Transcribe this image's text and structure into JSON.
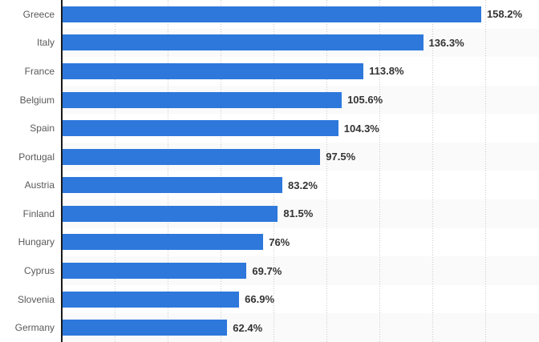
{
  "chart_data": {
    "type": "bar",
    "orientation": "horizontal",
    "categories": [
      "Greece",
      "Italy",
      "France",
      "Belgium",
      "Spain",
      "Portugal",
      "Austria",
      "Finland",
      "Hungary",
      "Cyprus",
      "Slovenia",
      "Germany"
    ],
    "values": [
      158.2,
      136.3,
      113.8,
      105.6,
      104.3,
      97.5,
      83.2,
      81.5,
      76,
      69.7,
      66.9,
      62.4
    ],
    "value_labels": [
      "158.2%",
      "136.3%",
      "113.8%",
      "105.6%",
      "104.3%",
      "97.5%",
      "83.2%",
      "81.5%",
      "76%",
      "69.7%",
      "66.9%",
      "62.4%"
    ],
    "unit": "%",
    "xlim": [
      0,
      180
    ],
    "gridline_step": 20,
    "grid": "vertical-dotted",
    "row_stripes": "alternating",
    "legend": "none"
  },
  "colors": {
    "bar": "#2e78dc",
    "row_stripe": "#fafafa",
    "gridline": "#c9c9c9",
    "axis": "#1a1a1a",
    "category_label": "#595959",
    "value_label": "#333333",
    "background": "#ffffff"
  }
}
